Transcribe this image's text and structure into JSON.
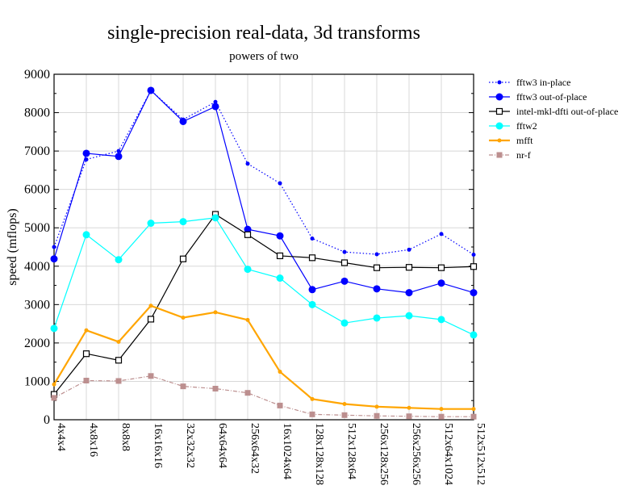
{
  "chart_data": {
    "type": "line",
    "title": "single-precision real-data, 3d transforms",
    "subtitle": "powers of two",
    "xlabel": "",
    "ylabel": "speed (mflops)",
    "ylim": [
      0,
      9000
    ],
    "yticks": [
      "0",
      "1000",
      "2000",
      "3000",
      "4000",
      "5000",
      "6000",
      "7000",
      "8000",
      "9000"
    ],
    "grid": true,
    "legend_position": "right-top outside",
    "categories": [
      "4x4x4",
      "4x8x16",
      "8x8x8",
      "16x16x16",
      "32x32x32",
      "64x64x64",
      "256x64x32",
      "16x1024x64",
      "128x128x128",
      "512x128x64",
      "256x128x256",
      "256x256x256",
      "512x64x1024",
      "512x512x512"
    ],
    "series": [
      {
        "name": "fftw3 in-place",
        "color": "#0000ff",
        "style": "dotted",
        "marker": "small-circle",
        "values": [
          4500,
          6780,
          7000,
          8580,
          7820,
          8280,
          6670,
          6160,
          4720,
          4370,
          4310,
          4430,
          4840,
          4300
        ]
      },
      {
        "name": "fftw3 out-of-place",
        "color": "#0000ff",
        "style": "solid",
        "marker": "circle",
        "values": [
          4190,
          6940,
          6860,
          8580,
          7770,
          8160,
          4960,
          4790,
          3390,
          3610,
          3410,
          3310,
          3560,
          3310
        ]
      },
      {
        "name": "intel-mkl-dfti out-of-place",
        "color": "#000000",
        "style": "solid",
        "marker": "open-square",
        "values": [
          660,
          1720,
          1550,
          2620,
          4190,
          5350,
          4820,
          4270,
          4220,
          4090,
          3960,
          3970,
          3960,
          3990
        ]
      },
      {
        "name": "fftw2",
        "color": "#00ffff",
        "style": "solid",
        "marker": "circle",
        "values": [
          2380,
          4820,
          4170,
          5120,
          5160,
          5260,
          3920,
          3690,
          3000,
          2520,
          2650,
          2710,
          2610,
          2210
        ]
      },
      {
        "name": "mfft",
        "color": "#ffa500",
        "style": "thick",
        "marker": "small-circle",
        "values": [
          920,
          2330,
          2030,
          2970,
          2660,
          2800,
          2600,
          1250,
          540,
          410,
          340,
          310,
          280,
          280
        ]
      },
      {
        "name": "nr-f",
        "color": "#bc8f8f",
        "style": "dashdot",
        "marker": "square",
        "values": [
          570,
          1020,
          1010,
          1140,
          870,
          810,
          700,
          370,
          140,
          120,
          100,
          90,
          80,
          80
        ]
      }
    ]
  }
}
